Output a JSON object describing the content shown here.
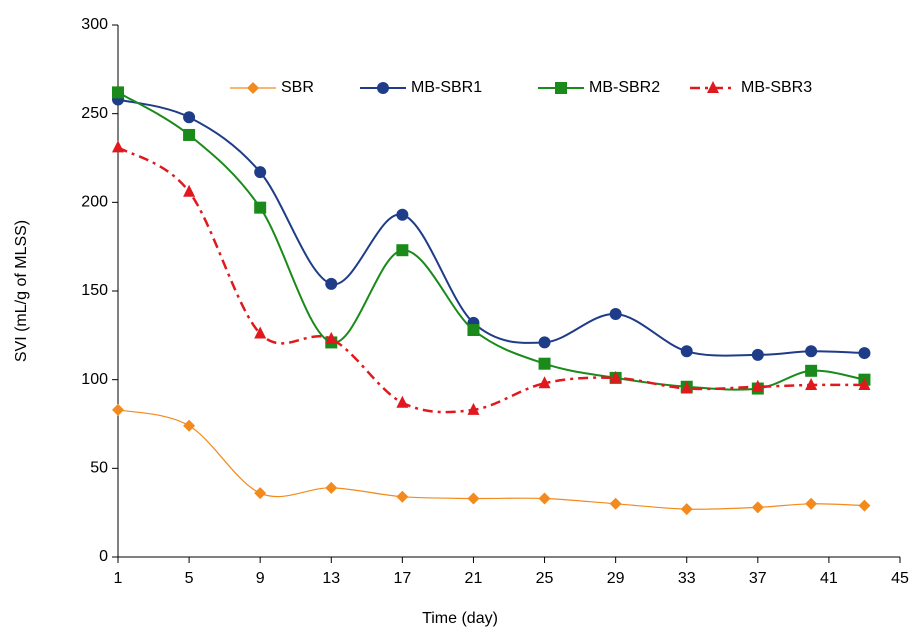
{
  "chart_data": {
    "type": "line",
    "xlabel": "Time (day)",
    "ylabel": "SVI (mL/g of MLSS)",
    "x": [
      1,
      5,
      9,
      13,
      17,
      21,
      25,
      29,
      33,
      37,
      40,
      43
    ],
    "xlim": [
      1,
      45
    ],
    "xticks": [
      1,
      5,
      9,
      13,
      17,
      21,
      25,
      29,
      33,
      37,
      41,
      45
    ],
    "ylim": [
      0,
      300
    ],
    "yticks": [
      0,
      50,
      100,
      150,
      200,
      250,
      300
    ],
    "grid": false,
    "legend": "top",
    "series": [
      {
        "name": "SBR",
        "color": "#f28a1e",
        "marker": "diamond",
        "dash": "solid",
        "width": 1.2,
        "values": [
          83,
          74,
          36,
          39,
          34,
          33,
          33,
          30,
          27,
          28,
          30,
          29
        ]
      },
      {
        "name": "MB-SBR1",
        "color": "#1f3c88",
        "marker": "circle",
        "dash": "solid",
        "width": 2,
        "values": [
          258,
          248,
          217,
          154,
          193,
          132,
          121,
          137,
          116,
          114,
          116,
          115
        ]
      },
      {
        "name": "MB-SBR2",
        "color": "#1a8a1a",
        "marker": "square",
        "dash": "solid",
        "width": 2,
        "values": [
          262,
          238,
          197,
          121,
          173,
          128,
          109,
          101,
          96,
          95,
          105,
          100
        ]
      },
      {
        "name": "MB-SBR3",
        "color": "#e0191e",
        "marker": "triangle",
        "dash": "dashdot",
        "width": 2.5,
        "values": [
          231,
          206,
          126,
          123,
          87,
          83,
          98,
          101,
          95,
          96,
          97,
          97
        ]
      }
    ]
  }
}
